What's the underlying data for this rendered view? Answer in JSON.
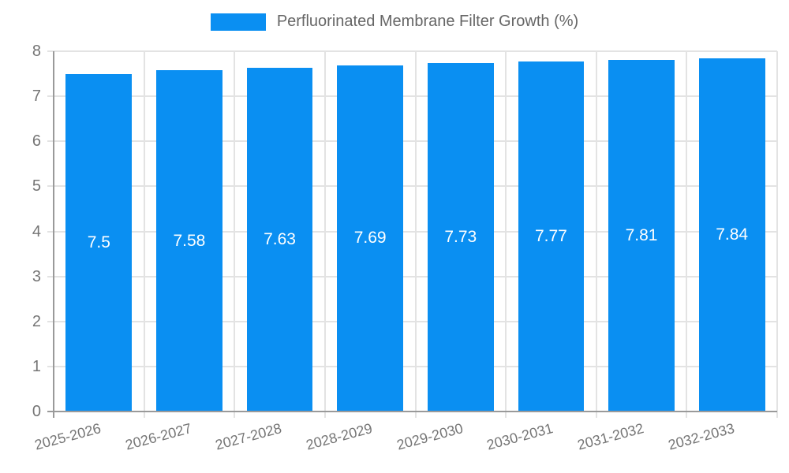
{
  "legend": {
    "label": "Perfluorinated Membrane Filter Growth (%)"
  },
  "chart_data": {
    "type": "bar",
    "title": "Perfluorinated Membrane Filter Growth (%)",
    "categories": [
      "2025-2026",
      "2026-2027",
      "2027-2028",
      "2028-2029",
      "2029-2030",
      "2030-2031",
      "2031-2032",
      "2032-2033"
    ],
    "values": [
      7.5,
      7.58,
      7.63,
      7.69,
      7.73,
      7.77,
      7.81,
      7.84
    ],
    "value_labels": [
      "7.5",
      "7.58",
      "7.63",
      "7.69",
      "7.73",
      "7.77",
      "7.81",
      "7.84"
    ],
    "xlabel": "",
    "ylabel": "",
    "ylim": [
      0,
      8
    ],
    "yticks": [
      0,
      1,
      2,
      3,
      4,
      5,
      6,
      7,
      8
    ],
    "grid": true,
    "legend_position": "top",
    "colors": {
      "bar": "#0a8ff2",
      "grid_line": "#e3e3e3",
      "axis_line": "#9a9a9a",
      "tick_text": "#757575",
      "legend_text": "#666666",
      "bar_label_text": "#ffffff",
      "background": "#ffffff"
    }
  }
}
